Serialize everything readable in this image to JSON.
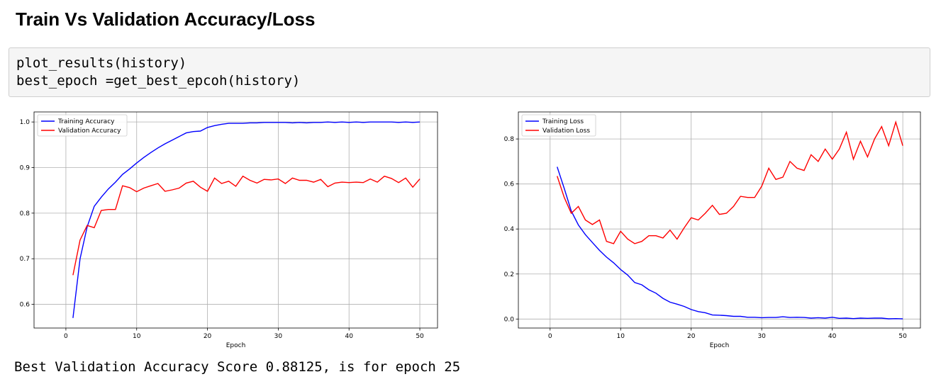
{
  "heading": "Train Vs Validation Accuracy/Loss",
  "code": {
    "line1": "plot_results(history)",
    "line2": "best_epoch =get_best_epcoh(history)"
  },
  "output": "Best Validation Accuracy Score 0.88125, is for epoch 25",
  "colors": {
    "train": "#0000ff",
    "validation": "#ff0000",
    "grid": "#b0b0b0"
  },
  "chart_data": [
    {
      "type": "line",
      "title": "",
      "xlabel": "Epoch",
      "ylabel": "",
      "xlim": [
        -4.5,
        52.5
      ],
      "ylim": [
        0.548,
        1.022
      ],
      "xticks": [
        0,
        10,
        20,
        30,
        40,
        50
      ],
      "yticks": [
        0.6,
        0.7,
        0.8,
        0.9,
        1.0
      ],
      "ytick_labels": [
        "0.6",
        "0.7",
        "0.8",
        "0.9",
        "1.0"
      ],
      "grid": true,
      "legend_position": "upper-left",
      "x": [
        1,
        2,
        3,
        4,
        5,
        6,
        7,
        8,
        9,
        10,
        11,
        12,
        13,
        14,
        15,
        16,
        17,
        18,
        19,
        20,
        21,
        22,
        23,
        24,
        25,
        26,
        27,
        28,
        29,
        30,
        31,
        32,
        33,
        34,
        35,
        36,
        37,
        38,
        39,
        40,
        41,
        42,
        43,
        44,
        45,
        46,
        47,
        48,
        49,
        50
      ],
      "series": [
        {
          "name": "Training Accuracy",
          "color": "#0000ff",
          "values": [
            0.57,
            0.7,
            0.77,
            0.815,
            0.835,
            0.853,
            0.868,
            0.885,
            0.897,
            0.91,
            0.922,
            0.933,
            0.943,
            0.952,
            0.96,
            0.968,
            0.976,
            0.979,
            0.98,
            0.988,
            0.992,
            0.995,
            0.997,
            0.997,
            0.997,
            0.998,
            0.998,
            0.999,
            0.999,
            0.999,
            0.999,
            0.998,
            0.999,
            0.998,
            0.999,
            0.999,
            1.0,
            0.999,
            1.0,
            0.999,
            1.0,
            0.999,
            1.0,
            1.0,
            1.0,
            1.0,
            0.999,
            1.0,
            0.999,
            1.0
          ]
        },
        {
          "name": "Validation Accuracy",
          "color": "#ff0000",
          "values": [
            0.664,
            0.741,
            0.773,
            0.768,
            0.806,
            0.808,
            0.808,
            0.86,
            0.856,
            0.847,
            0.855,
            0.86,
            0.865,
            0.848,
            0.851,
            0.855,
            0.866,
            0.87,
            0.857,
            0.848,
            0.877,
            0.865,
            0.87,
            0.859,
            0.881,
            0.872,
            0.866,
            0.874,
            0.873,
            0.875,
            0.865,
            0.877,
            0.872,
            0.872,
            0.868,
            0.874,
            0.858,
            0.866,
            0.868,
            0.867,
            0.868,
            0.867,
            0.875,
            0.868,
            0.881,
            0.876,
            0.867,
            0.877,
            0.857,
            0.875
          ]
        }
      ]
    },
    {
      "type": "line",
      "title": "",
      "xlabel": "Epoch",
      "ylabel": "",
      "xlim": [
        -4.5,
        52.5
      ],
      "ylim": [
        -0.04,
        0.92
      ],
      "xticks": [
        0,
        10,
        20,
        30,
        40,
        50
      ],
      "yticks": [
        0.0,
        0.2,
        0.4,
        0.6,
        0.8
      ],
      "ytick_labels": [
        "0.0",
        "0.2",
        "0.4",
        "0.6",
        "0.8"
      ],
      "grid": true,
      "legend_position": "upper-left",
      "x": [
        1,
        2,
        3,
        4,
        5,
        6,
        7,
        8,
        9,
        10,
        11,
        12,
        13,
        14,
        15,
        16,
        17,
        18,
        19,
        20,
        21,
        22,
        23,
        24,
        25,
        26,
        27,
        28,
        29,
        30,
        31,
        32,
        33,
        34,
        35,
        36,
        37,
        38,
        39,
        40,
        41,
        42,
        43,
        44,
        45,
        46,
        47,
        48,
        49,
        50
      ],
      "series": [
        {
          "name": "Training Loss",
          "color": "#0000ff",
          "values": [
            0.676,
            0.58,
            0.48,
            0.418,
            0.375,
            0.34,
            0.305,
            0.275,
            0.25,
            0.22,
            0.195,
            0.162,
            0.152,
            0.13,
            0.115,
            0.092,
            0.075,
            0.066,
            0.056,
            0.042,
            0.033,
            0.028,
            0.018,
            0.017,
            0.015,
            0.012,
            0.012,
            0.008,
            0.008,
            0.006,
            0.007,
            0.007,
            0.01,
            0.007,
            0.008,
            0.007,
            0.004,
            0.006,
            0.004,
            0.008,
            0.003,
            0.004,
            0.002,
            0.004,
            0.003,
            0.004,
            0.004,
            0.001,
            0.002,
            0.001
          ]
        },
        {
          "name": "Validation Loss",
          "color": "#ff0000",
          "values": [
            0.635,
            0.54,
            0.47,
            0.5,
            0.44,
            0.42,
            0.44,
            0.345,
            0.335,
            0.39,
            0.355,
            0.335,
            0.345,
            0.37,
            0.37,
            0.36,
            0.395,
            0.355,
            0.405,
            0.45,
            0.44,
            0.47,
            0.505,
            0.465,
            0.47,
            0.5,
            0.545,
            0.54,
            0.54,
            0.59,
            0.67,
            0.62,
            0.63,
            0.7,
            0.67,
            0.66,
            0.73,
            0.7,
            0.755,
            0.71,
            0.755,
            0.83,
            0.71,
            0.79,
            0.72,
            0.8,
            0.855,
            0.77,
            0.875,
            0.77
          ]
        }
      ]
    }
  ]
}
